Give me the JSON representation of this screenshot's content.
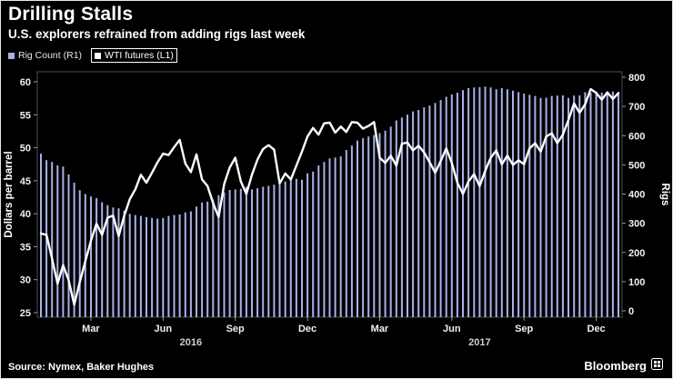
{
  "header": {
    "title": "Drilling Stalls",
    "subtitle": "U.S. explorers refrained from adding rigs last week"
  },
  "legend": {
    "items": [
      {
        "label": "Rig Count (R1)"
      },
      {
        "label": "WTI futures (L1)"
      }
    ]
  },
  "footer": {
    "source": "Source: Nymex, Baker Hughes",
    "brand": "Bloomberg"
  },
  "chart_data": {
    "type": "combo",
    "title": "Drilling Stalls",
    "subtitle": "U.S. explorers refrained from adding rigs last week",
    "colors": {
      "background": "#000000",
      "bar": "#a9b1e8",
      "line": "#ffffff",
      "frame": "#4d4d4d",
      "tick": "#999999",
      "text": "#f0f0f0",
      "year_text": "#cfcfcf"
    },
    "left_axis": {
      "label": "Dollars per barrel",
      "ticks": [
        25,
        30,
        35,
        40,
        45,
        50,
        55,
        60
      ],
      "range": [
        25,
        60
      ]
    },
    "right_axis": {
      "label": "Rigs",
      "ticks": [
        0,
        100,
        200,
        300,
        400,
        500,
        600,
        700,
        800
      ],
      "range": [
        0,
        800
      ]
    },
    "x_axis": {
      "tick_labels": [
        "Mar",
        "Jun",
        "Sep",
        "Dec",
        "Mar",
        "Jun",
        "Sep",
        "Dec"
      ],
      "tick_weeks": [
        9,
        22,
        35,
        48,
        61,
        74,
        87,
        100
      ],
      "year_labels": [
        {
          "text": "2016",
          "week": 27
        },
        {
          "text": "2017",
          "week": 79
        }
      ]
    },
    "series": [
      {
        "name": "Rig Count (R1)",
        "type": "bar",
        "axis": "right",
        "color": "#a9b1e8",
        "values": [
          538,
          516,
          510,
          498,
          494,
          467,
          439,
          413,
          400,
          392,
          386,
          372,
          362,
          354,
          351,
          343,
          332,
          328,
          325,
          321,
          318,
          316,
          318,
          325,
          328,
          330,
          337,
          341,
          357,
          371,
          374,
          381,
          396,
          406,
          414,
          416,
          418,
          425,
          416,
          420,
          425,
          428,
          432,
          441,
          443,
          450,
          452,
          449,
          471,
          477,
          498,
          510,
          522,
          525,
          529,
          551,
          566,
          583,
          591,
          597,
          602,
          609,
          617,
          631,
          652,
          662,
          672,
          683,
          688,
          697,
          703,
          712,
          722,
          733,
          741,
          747,
          756,
          763,
          765,
          766,
          768,
          765,
          759,
          763,
          759,
          754,
          749,
          744,
          740,
          736,
          729,
          730,
          736,
          737,
          738,
          729,
          737,
          738,
          749,
          747,
          751,
          747,
          750,
          751,
          747
        ]
      },
      {
        "name": "WTI futures (L1)",
        "type": "line",
        "axis": "left",
        "color": "#ffffff",
        "values": [
          37.0,
          36.8,
          33.2,
          29.4,
          32.2,
          29.9,
          26.2,
          29.6,
          32.8,
          35.9,
          38.5,
          36.8,
          39.4,
          39.7,
          36.6,
          39.7,
          42.2,
          43.7,
          45.9,
          44.7,
          46.2,
          47.8,
          49.1,
          48.9,
          50.1,
          51.2,
          47.6,
          46.3,
          49.0,
          45.2,
          44.2,
          41.6,
          39.5,
          44.5,
          47.0,
          48.5,
          44.9,
          43.0,
          45.9,
          48.2,
          49.8,
          50.4,
          49.7,
          44.6,
          46.1,
          45.2,
          47.3,
          49.4,
          51.7,
          53.0,
          52.0,
          53.7,
          53.8,
          52.3,
          53.2,
          52.4,
          53.9,
          53.8,
          52.9,
          53.3,
          53.9,
          48.5,
          47.7,
          48.8,
          47.3,
          50.6,
          50.8,
          49.6,
          50.3,
          49.3,
          47.8,
          46.2,
          48.0,
          49.9,
          47.7,
          44.7,
          43.0,
          44.9,
          46.0,
          44.2,
          46.5,
          48.5,
          49.6,
          47.5,
          48.8,
          47.4,
          48.1,
          47.5,
          49.9,
          50.7,
          49.4,
          51.7,
          52.2,
          50.7,
          52.0,
          54.2,
          56.7,
          55.3,
          56.6,
          58.9,
          58.3,
          57.3,
          58.4,
          57.4,
          58.3
        ]
      }
    ]
  }
}
